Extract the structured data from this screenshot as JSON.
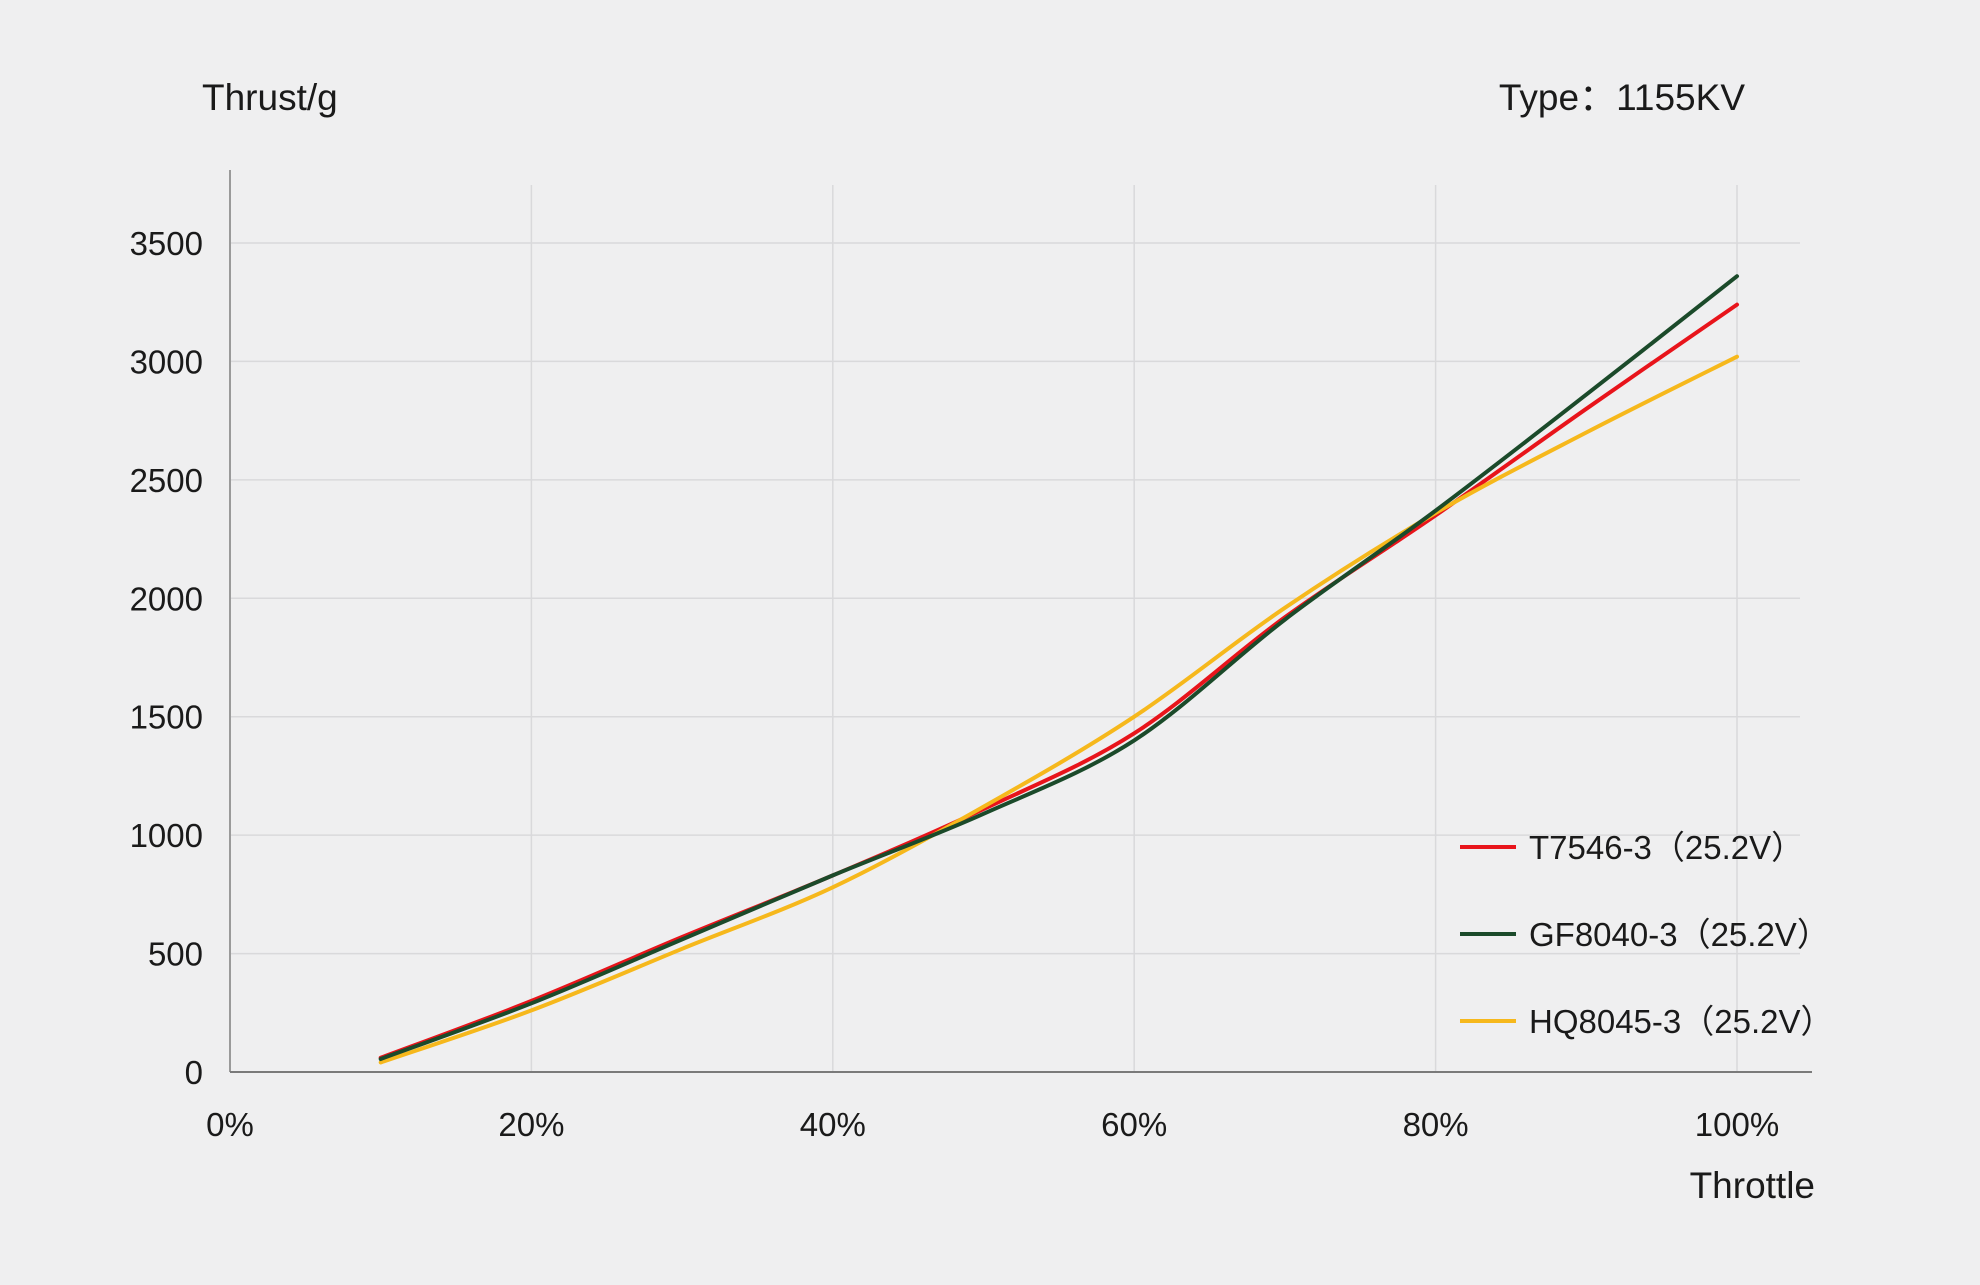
{
  "chart_data": {
    "type": "line",
    "ylabel": "Thrust/g",
    "type_label": "Type：1155KV",
    "xlabel": "Throttle",
    "x_ticks": [
      "0%",
      "20%",
      "40%",
      "60%",
      "80%",
      "100%"
    ],
    "y_ticks": [
      "0",
      "500",
      "1000",
      "1500",
      "2000",
      "2500",
      "3000",
      "3500"
    ],
    "xlim": [
      0,
      100
    ],
    "ylim": [
      0,
      3500
    ],
    "grid": true,
    "legend_position": "bottom-right",
    "x": [
      10,
      20,
      30,
      40,
      50,
      60,
      70,
      80,
      90,
      100
    ],
    "series": [
      {
        "name": "T7546-3（25.2V）",
        "color": "#e8141b",
        "values": [
          60,
          300,
          570,
          830,
          1110,
          1430,
          1920,
          2350,
          2800,
          3240
        ]
      },
      {
        "name": "GF8040-3（25.2V）",
        "color": "#1b4a2a",
        "values": [
          55,
          290,
          560,
          830,
          1090,
          1400,
          1910,
          2370,
          2860,
          3360
        ]
      },
      {
        "name": "HQ8045-3（25.2V）",
        "color": "#f6b81c",
        "values": [
          40,
          260,
          520,
          780,
          1120,
          1500,
          1960,
          2360,
          2700,
          3020
        ]
      }
    ]
  }
}
